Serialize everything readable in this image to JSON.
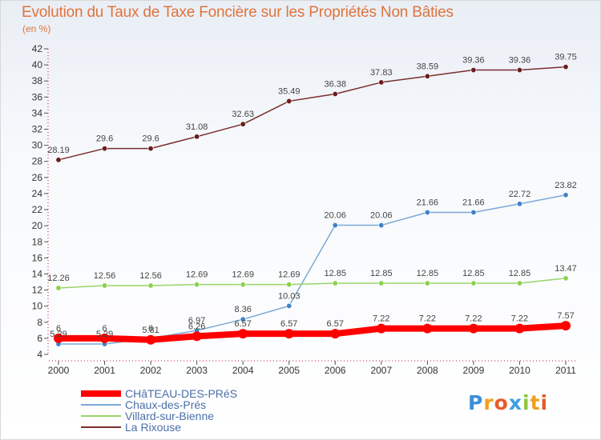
{
  "chart_data": {
    "type": "line",
    "title": "Evolution du Taux de Taxe Foncière sur les Propriétés Non Bâties",
    "subtitle": "(en %)",
    "x": [
      "2000",
      "2001",
      "2002",
      "2003",
      "2004",
      "2005",
      "2006",
      "2007",
      "2008",
      "2009",
      "2010",
      "2011"
    ],
    "ylim": [
      4,
      42
    ],
    "yticks": [
      4,
      6,
      8,
      10,
      12,
      14,
      16,
      18,
      20,
      22,
      24,
      26,
      28,
      30,
      32,
      34,
      36,
      38,
      40,
      42
    ],
    "grid": false,
    "legend_position": "bottom-left",
    "series": [
      {
        "name": "CHâTEAU-DES-PRéS",
        "color": "#ff0000",
        "marker": "#ff0000",
        "width": 8,
        "values": [
          6,
          6,
          5.81,
          6.26,
          6.57,
          6.57,
          6.57,
          7.22,
          7.22,
          7.22,
          7.22,
          7.57
        ],
        "labels": [
          "6",
          "6",
          "5.81",
          "6.26",
          "6.57",
          "6.57",
          "6.57",
          "7.22",
          "7.22",
          "7.22",
          "7.22",
          "7.57"
        ]
      },
      {
        "name": "Chaux-des-Prés",
        "color": "#7aa9d6",
        "marker": "#3f82c8",
        "width": 1.5,
        "values": [
          5.29,
          5.29,
          6,
          6.97,
          8.36,
          10.03,
          20.06,
          20.06,
          21.66,
          21.66,
          22.72,
          23.82
        ],
        "labels": [
          "5.29",
          "5.29",
          "6",
          "6.97",
          "8.36",
          "10.03",
          "20.06",
          "20.06",
          "21.66",
          "21.66",
          "22.72",
          "23.82"
        ]
      },
      {
        "name": "Villard-sur-Bienne",
        "color": "#9ad46a",
        "marker": "#8bd14c",
        "width": 1.5,
        "values": [
          12.26,
          12.56,
          12.56,
          12.69,
          12.69,
          12.69,
          12.85,
          12.85,
          12.85,
          12.85,
          12.85,
          13.47
        ],
        "labels": [
          "12.26",
          "12.56",
          "12.56",
          "12.69",
          "12.69",
          "12.69",
          "12.85",
          "12.85",
          "12.85",
          "12.85",
          "12.85",
          "13.47"
        ]
      },
      {
        "name": "La Rixouse",
        "color": "#7a2e2e",
        "marker": "#6a1c1c",
        "width": 1.5,
        "values": [
          28.19,
          29.6,
          29.6,
          31.08,
          32.63,
          35.49,
          36.38,
          37.83,
          38.59,
          39.36,
          39.36,
          39.75
        ],
        "labels": [
          "28.19",
          "29.6",
          "29.6",
          "31.08",
          "32.63",
          "35.49",
          "36.38",
          "37.83",
          "38.59",
          "39.36",
          "39.36",
          "39.75"
        ]
      }
    ]
  },
  "legend": {
    "items": [
      {
        "label": "CHâTEAU-DES-PRéS",
        "color": "#ff0000",
        "thickness": 8
      },
      {
        "label": "Chaux-des-Prés",
        "color": "#7aa9d6",
        "thickness": 2
      },
      {
        "label": "Villard-sur-Bienne",
        "color": "#9ad46a",
        "thickness": 2
      },
      {
        "label": "La Rixouse",
        "color": "#7a2e2e",
        "thickness": 2
      }
    ]
  },
  "logo": {
    "text": "Proxiti",
    "colors": [
      "#3c8fd8",
      "#f0a020",
      "#e85a2a",
      "#3aa0e0",
      "#8cc63f",
      "#f0a020",
      "#e85a2a"
    ]
  }
}
